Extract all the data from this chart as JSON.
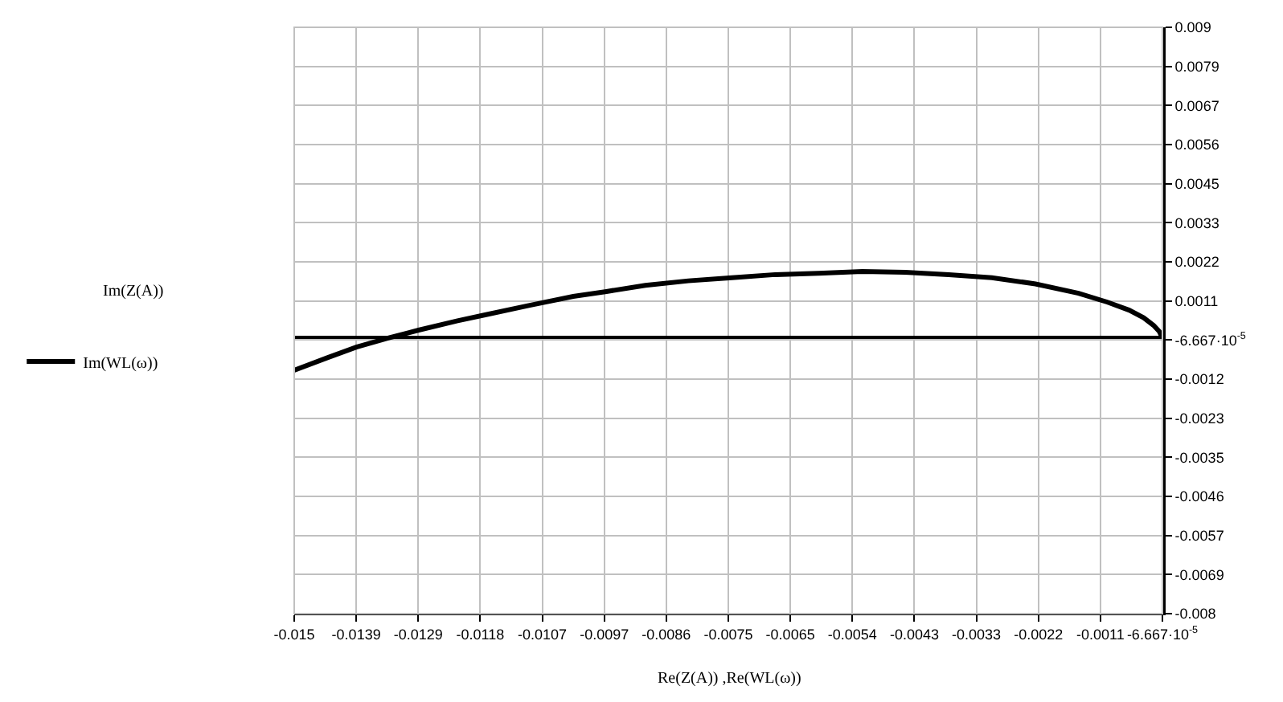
{
  "chart_data": {
    "type": "line",
    "xlabel": "Re(Z(A)) ,Re(WL(ω))",
    "annotations": [
      "Im(Z(A))"
    ],
    "x": [
      -0.015,
      -0.01443,
      -0.01393,
      -0.01336,
      -0.01286,
      -0.01219,
      -0.0117,
      -0.01095,
      -0.0102,
      -0.00963,
      -0.00896,
      -0.00822,
      -0.00747,
      -0.00673,
      -0.00598,
      -0.00523,
      -0.00449,
      -0.00374,
      -0.003,
      -0.00225,
      -0.00151,
      -0.00101,
      -0.00064,
      -0.00039,
      -0.00022,
      -0.00012,
      -7e-05
    ],
    "series": [
      {
        "name": "Im(WL(ω))",
        "color": "#000000",
        "values": [
          -0.00094,
          -0.00058,
          -0.00027,
          0,
          0.00022,
          0.00049,
          0.00067,
          0.00094,
          0.0012,
          0.00134,
          0.00152,
          0.00165,
          0.00174,
          0.00183,
          0.00187,
          0.00192,
          0.0019,
          0.00183,
          0.00174,
          0.00156,
          0.00129,
          0.00103,
          0.0008,
          0.00058,
          0.00036,
          0.00018,
          0
        ]
      }
    ],
    "xlim": [
      -0.015,
      -6.667e-05
    ],
    "ylim": [
      -0.008,
      0.009
    ],
    "xticks": [
      {
        "value": -0.015,
        "label": "-0.015"
      },
      {
        "value": -0.0139333,
        "label": "-0.0139"
      },
      {
        "value": -0.0128667,
        "label": "-0.0129"
      },
      {
        "value": -0.0118,
        "label": "-0.0118"
      },
      {
        "value": -0.0107333,
        "label": "-0.0107"
      },
      {
        "value": -0.0096667,
        "label": "-0.0097"
      },
      {
        "value": -0.0086,
        "label": "-0.0086"
      },
      {
        "value": -0.0075333,
        "label": "-0.0075"
      },
      {
        "value": -0.0064667,
        "label": "-0.0065"
      },
      {
        "value": -0.0054,
        "label": "-0.0054"
      },
      {
        "value": -0.0043333,
        "label": "-0.0043"
      },
      {
        "value": -0.0032667,
        "label": "-0.0033"
      },
      {
        "value": -0.0022,
        "label": "-0.0022"
      },
      {
        "value": -0.0011333,
        "label": "-0.0011"
      },
      {
        "value": -6.667e-05,
        "label": "-6.667·10$^{-5}$"
      }
    ],
    "yticks": [
      {
        "value": 0.009,
        "label": "0.009"
      },
      {
        "value": 0.0078667,
        "label": "0.0079"
      },
      {
        "value": 0.0067333,
        "label": "0.0067"
      },
      {
        "value": 0.0056,
        "label": "0.0056"
      },
      {
        "value": 0.0044667,
        "label": "0.0045"
      },
      {
        "value": 0.0033333,
        "label": "0.0033"
      },
      {
        "value": 0.0022,
        "label": "0.0022"
      },
      {
        "value": 0.0010667,
        "label": "0.0011"
      },
      {
        "value": -6.667e-05,
        "label": "-6.667·10$^{-5}$"
      },
      {
        "value": -0.0012,
        "label": "-0.0012"
      },
      {
        "value": -0.0023333,
        "label": "-0.0023"
      },
      {
        "value": -0.0034667,
        "label": "-0.0035"
      },
      {
        "value": -0.0046,
        "label": "-0.0046"
      },
      {
        "value": -0.0057333,
        "label": "-0.0057"
      },
      {
        "value": -0.0068667,
        "label": "-0.0069"
      },
      {
        "value": -0.008,
        "label": "-0.008"
      }
    ],
    "grid": true,
    "legend": "left",
    "marker": "none",
    "line_style": "solid"
  }
}
